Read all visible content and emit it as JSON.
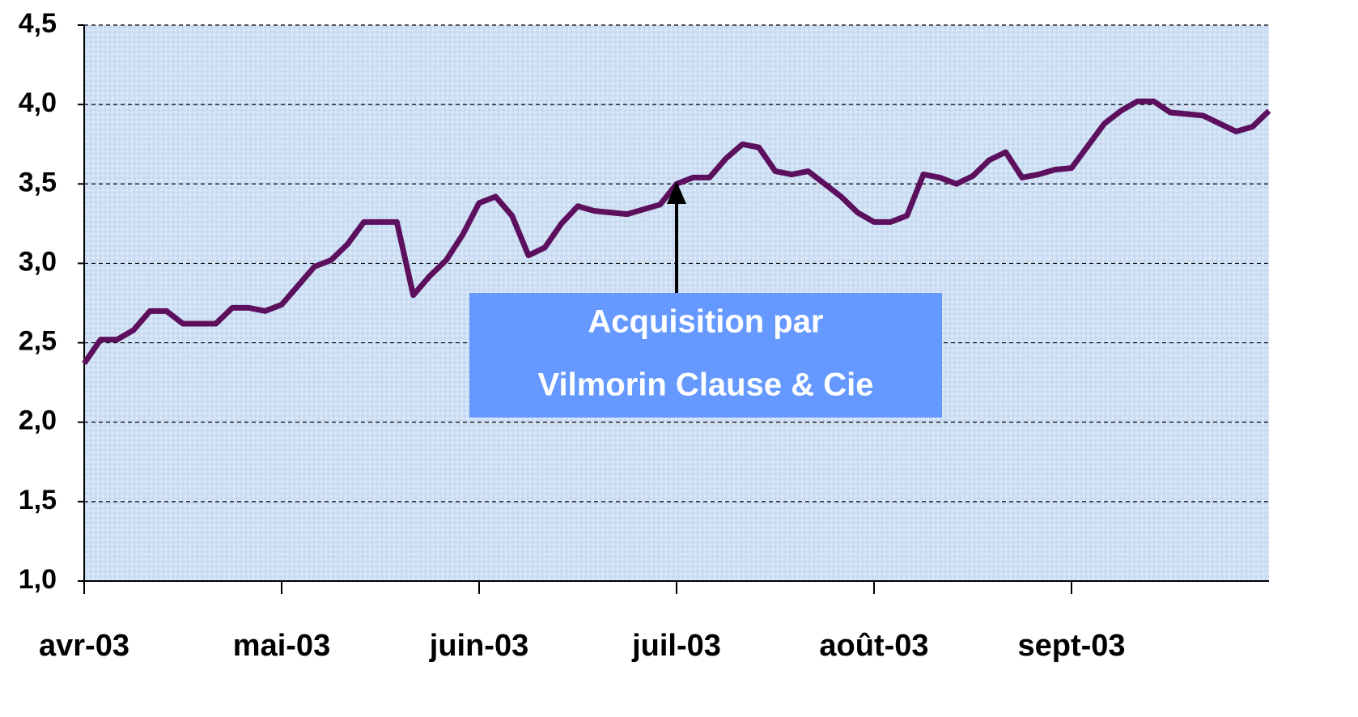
{
  "chart_data": {
    "type": "line",
    "annotation": [
      "Acquisition par",
      "Vilmorin Clause & Cie"
    ],
    "categories": [
      "avr-03",
      null,
      null,
      null,
      null,
      null,
      null,
      null,
      null,
      null,
      null,
      null,
      "mai-03",
      null,
      null,
      null,
      null,
      null,
      null,
      null,
      null,
      null,
      null,
      null,
      "juin-03",
      null,
      null,
      null,
      null,
      null,
      null,
      null,
      null,
      null,
      null,
      null,
      "juil-03",
      null,
      null,
      null,
      null,
      null,
      null,
      null,
      null,
      null,
      null,
      null,
      "août-03",
      null,
      null,
      null,
      null,
      null,
      null,
      null,
      null,
      null,
      null,
      null,
      "sept-03",
      null,
      null,
      null,
      null,
      null,
      null,
      null,
      null,
      null,
      null,
      null,
      null
    ],
    "series": [
      {
        "color": "#5c0f5c",
        "values": [
          2.37,
          2.52,
          2.52,
          2.58,
          2.7,
          2.7,
          2.62,
          2.62,
          2.62,
          2.72,
          2.72,
          2.7,
          2.74,
          2.86,
          2.98,
          3.02,
          3.12,
          3.26,
          3.26,
          3.26,
          2.8,
          2.92,
          3.02,
          3.18,
          3.38,
          3.42,
          3.3,
          3.05,
          3.1,
          3.25,
          3.36,
          3.33,
          3.32,
          3.31,
          3.34,
          3.37,
          3.5,
          3.54,
          3.54,
          3.66,
          3.75,
          3.73,
          3.58,
          3.56,
          3.58,
          3.5,
          3.42,
          3.32,
          3.26,
          3.26,
          3.3,
          3.56,
          3.54,
          3.5,
          3.55,
          3.65,
          3.7,
          3.54,
          3.56,
          3.59,
          3.6,
          3.74,
          3.88,
          3.96,
          4.02,
          4.02,
          3.95,
          3.94,
          3.93,
          3.88,
          3.83,
          3.86,
          3.96
        ]
      }
    ],
    "ylim": [
      1.0,
      4.5
    ],
    "yticks": [
      {
        "value": 1.0,
        "label": "1,0"
      },
      {
        "value": 1.5,
        "label": "1,5"
      },
      {
        "value": 2.0,
        "label": "2,0"
      },
      {
        "value": 2.5,
        "label": "2,5"
      },
      {
        "value": 3.0,
        "label": "3,0"
      },
      {
        "value": 3.5,
        "label": "3,5"
      },
      {
        "value": 4.0,
        "label": "4,0"
      },
      {
        "value": 4.5,
        "label": "4,5"
      }
    ],
    "grid": true
  }
}
